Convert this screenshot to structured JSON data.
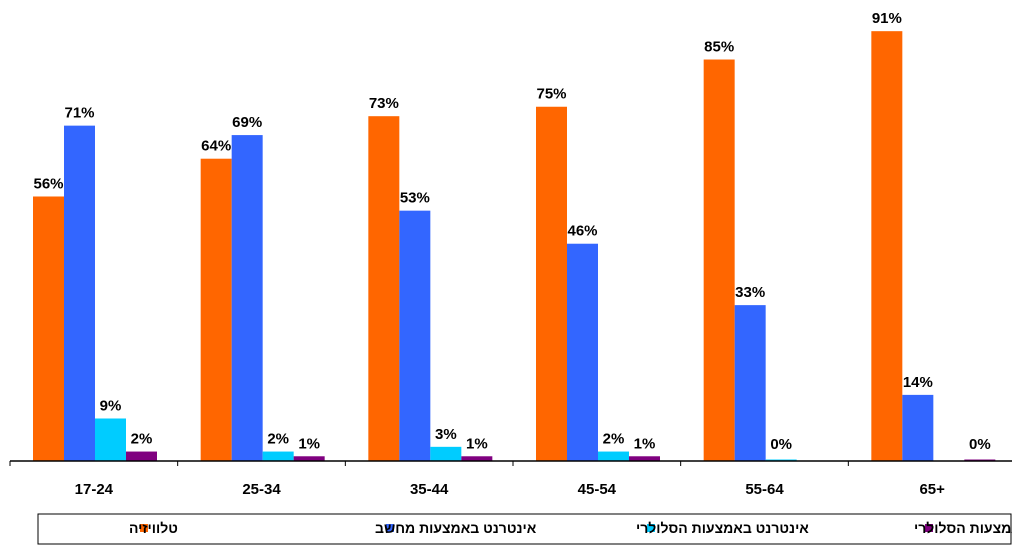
{
  "chart_data": {
    "type": "bar",
    "categories": [
      "17-24",
      "25-34",
      "35-44",
      "45-54",
      "55-64",
      "65+"
    ],
    "series": [
      {
        "name": "טלוויזיה",
        "color": "#FF6600",
        "values": [
          56,
          64,
          73,
          75,
          85,
          91
        ]
      },
      {
        "name": "אינטרנט באמצעות מחשב",
        "color": "#3366FF",
        "values": [
          71,
          69,
          53,
          46,
          33,
          14
        ]
      },
      {
        "name": "אינטרנט באמצעות הסלולרי",
        "color": "#00CCFF",
        "values": [
          9,
          2,
          3,
          2,
          0,
          null
        ]
      },
      {
        "name": "טלוויזיה באמצעות הסלולרי",
        "color": "#800080",
        "values": [
          2,
          1,
          1,
          1,
          null,
          0
        ]
      }
    ],
    "value_suffix": "%",
    "ylim": [
      0,
      100
    ],
    "grid": false,
    "legend_position": "bottom"
  }
}
